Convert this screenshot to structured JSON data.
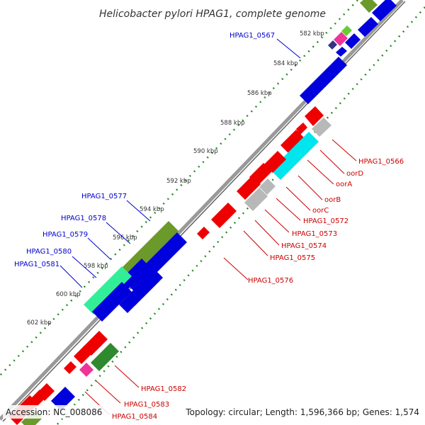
{
  "title": "Helicobacter pylori HPAG1, complete genome",
  "accession": "Accession: NC_008086",
  "summary": "Topology: circular; Length: 1,596,366 bp; Genes: 1,574",
  "kbp_ticks": [
    "582 kbp",
    "584 kbp",
    "586 kbp",
    "588 kbp",
    "590 kbp",
    "592 kbp",
    "594 kbp",
    "596 kbp",
    "598 kbp",
    "600 kbp",
    "602 kbp"
  ],
  "labels_left": [
    "HPAG1_0567",
    "HPAG1_0577",
    "HPAG1_0578",
    "HPAG1_0579",
    "HPAG1_0580",
    "HPAG1_0581"
  ],
  "labels_right": [
    "HPAG1_0566",
    "oorD",
    "oorA",
    "oorB",
    "oorC",
    "HPAG1_0572",
    "HPAG1_0573",
    "HPAG1_0574",
    "HPAG1_0575",
    "HPAG1_0576",
    "HPAG1_0582",
    "HPAG1_0583",
    "HPAG1_0584"
  ],
  "colors": {
    "label_left": "#0000cc",
    "label_right": "#cc0000",
    "blue_gene": "#0000dd",
    "red_gene": "#ee0000",
    "gray_gene": "#b8b8b8",
    "cyan_gene": "#00e5ee",
    "green_gene": "#6b9a2a",
    "teal_gene": "#33ee99",
    "magenta_gene": "#ee3399",
    "backbone": "#999999",
    "dots_outer": "#2a8a2a"
  }
}
